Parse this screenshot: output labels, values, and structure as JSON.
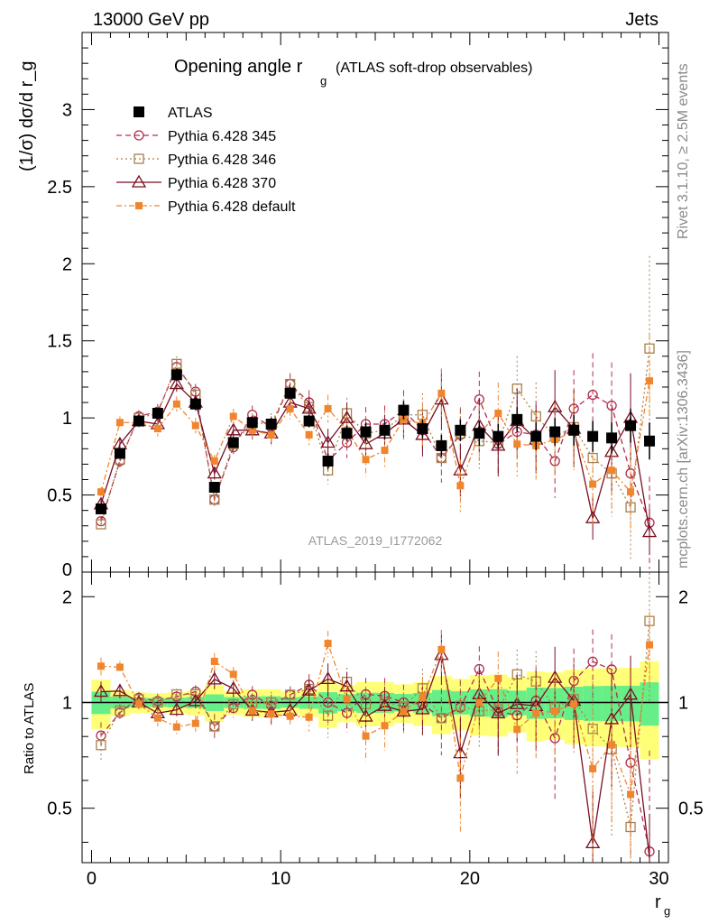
{
  "header": {
    "left": "13000 GeV pp",
    "right": "Jets",
    "title_main": "Opening angle r",
    "title_sub": "g",
    "title_rest": "(ATLAS soft-drop observables)",
    "analysis_id": "ATLAS_2019_I1772062",
    "side_rivet": "Rivet 3.1.10, ≥ 2.5M events",
    "side_mcplots": "mcplots.cern.ch [arXiv:1306.3436]"
  },
  "chart_data": {
    "type": "scatter",
    "title": "Opening angle r_g (ATLAS soft-drop observables)",
    "xlabel": "r_g",
    "ylabel": "(1/σ) dσ/d r_g",
    "ratio_ylabel": "Ratio to ATLAS",
    "xlim": [
      -0.5,
      30.5
    ],
    "ylim": [
      0,
      3.5
    ],
    "ratio_ylim": [
      0.35,
      2.35
    ],
    "x_ticks": [
      "0",
      "10",
      "20",
      "30"
    ],
    "y_ticks": [
      "0.5",
      "1",
      "1.5",
      "2",
      "2.5",
      "3"
    ],
    "ratio_y_ticks": [
      "0.5",
      "1",
      "2"
    ],
    "x": [
      0.5,
      1.5,
      2.5,
      3.5,
      4.5,
      5.5,
      6.5,
      7.5,
      8.5,
      9.5,
      10.5,
      11.5,
      12.5,
      13.5,
      14.5,
      15.5,
      16.5,
      17.5,
      18.5,
      19.5,
      20.5,
      21.5,
      22.5,
      23.5,
      24.5,
      25.5,
      26.5,
      27.5,
      28.5,
      29.5
    ],
    "data": {
      "name": "ATLAS",
      "values": [
        0.41,
        0.77,
        0.98,
        1.03,
        1.28,
        1.09,
        0.55,
        0.84,
        0.97,
        0.96,
        1.16,
        0.98,
        0.72,
        0.9,
        0.91,
        0.92,
        1.05,
        0.93,
        0.82,
        0.92,
        0.9,
        0.88,
        0.99,
        0.88,
        0.91,
        0.92,
        0.88,
        0.87,
        0.95,
        0.85
      ],
      "errors": [
        0.03,
        0.03,
        0.03,
        0.03,
        0.04,
        0.04,
        0.03,
        0.03,
        0.04,
        0.04,
        0.04,
        0.04,
        0.05,
        0.05,
        0.06,
        0.06,
        0.06,
        0.06,
        0.07,
        0.07,
        0.08,
        0.08,
        0.08,
        0.09,
        0.09,
        0.1,
        0.1,
        0.1,
        0.11,
        0.12
      ]
    },
    "series": [
      {
        "name": "Pythia 6.428 345",
        "color": "#b22d4e",
        "marker": "circle",
        "dash": "6,4",
        "values": [
          0.33,
          0.72,
          1.01,
          1.04,
          1.33,
          1.17,
          0.47,
          0.81,
          1.02,
          0.94,
          1.22,
          1.1,
          0.72,
          0.84,
          0.96,
          0.96,
          1.05,
          0.92,
          0.74,
          0.89,
          1.12,
          0.83,
          0.91,
          0.89,
          0.72,
          1.06,
          1.15,
          1.08,
          0.64,
          0.32
        ],
        "errors": [
          0.03,
          0.04,
          0.04,
          0.05,
          0.05,
          0.05,
          0.04,
          0.05,
          0.06,
          0.07,
          0.07,
          0.08,
          0.09,
          0.1,
          0.11,
          0.12,
          0.13,
          0.14,
          0.16,
          0.17,
          0.18,
          0.2,
          0.21,
          0.22,
          0.24,
          0.25,
          0.27,
          0.28,
          0.29,
          0.3
        ]
      },
      {
        "name": "Pythia 6.428 346",
        "color": "#a8814a",
        "marker": "square-open",
        "dash": "2,3",
        "values": [
          0.31,
          0.73,
          1.0,
          1.03,
          1.35,
          1.15,
          0.47,
          0.83,
          0.97,
          0.96,
          1.22,
          1.07,
          0.66,
          1.03,
          0.9,
          0.92,
          1.02,
          1.02,
          0.74,
          0.9,
          0.85,
          0.84,
          1.19,
          1.01,
          0.88,
          0.94,
          0.74,
          0.64,
          0.42,
          1.45
        ],
        "errors": [
          0.03,
          0.04,
          0.04,
          0.05,
          0.05,
          0.05,
          0.04,
          0.05,
          0.06,
          0.07,
          0.07,
          0.08,
          0.09,
          0.1,
          0.11,
          0.12,
          0.13,
          0.14,
          0.16,
          0.17,
          0.18,
          0.2,
          0.21,
          0.22,
          0.24,
          0.25,
          0.27,
          0.28,
          0.35,
          0.6
        ]
      },
      {
        "name": "Pythia 6.428 370",
        "color": "#7a0e22",
        "marker": "triangle",
        "dash": "",
        "values": [
          0.44,
          0.83,
          0.98,
          0.96,
          1.22,
          1.1,
          0.64,
          0.92,
          0.92,
          0.9,
          1.1,
          1.06,
          0.84,
          1.0,
          0.83,
          0.9,
          0.99,
          0.89,
          1.12,
          0.66,
          0.95,
          0.82,
          0.98,
          0.86,
          1.07,
          0.93,
          0.35,
          0.78,
          1.0,
          0.26
        ],
        "errors": [
          0.03,
          0.04,
          0.04,
          0.05,
          0.05,
          0.05,
          0.04,
          0.05,
          0.06,
          0.07,
          0.07,
          0.08,
          0.09,
          0.1,
          0.11,
          0.12,
          0.13,
          0.14,
          0.2,
          0.17,
          0.18,
          0.2,
          0.21,
          0.22,
          0.24,
          0.25,
          0.14,
          0.28,
          0.29,
          0.15
        ]
      },
      {
        "name": "Pythia 6.428 default",
        "color": "#f0852d",
        "marker": "square-filled",
        "dash": "6,3,2,3",
        "values": [
          0.52,
          0.97,
          0.97,
          0.93,
          1.09,
          0.95,
          0.72,
          1.01,
          0.92,
          0.89,
          1.06,
          0.89,
          1.06,
          0.92,
          0.73,
          0.79,
          0.99,
          0.96,
          1.16,
          0.56,
          0.9,
          1.03,
          0.83,
          0.82,
          0.86,
          0.91,
          0.57,
          0.66,
          0.52,
          1.24
        ],
        "errors": [
          0.03,
          0.04,
          0.04,
          0.05,
          0.05,
          0.05,
          0.04,
          0.05,
          0.06,
          0.07,
          0.07,
          0.08,
          0.09,
          0.1,
          0.11,
          0.12,
          0.13,
          0.14,
          0.16,
          0.17,
          0.18,
          0.2,
          0.21,
          0.22,
          0.24,
          0.25,
          0.27,
          0.28,
          0.29,
          0.3
        ]
      }
    ],
    "ratio_band": {
      "inner": 0.04,
      "outer": 0.09
    }
  }
}
